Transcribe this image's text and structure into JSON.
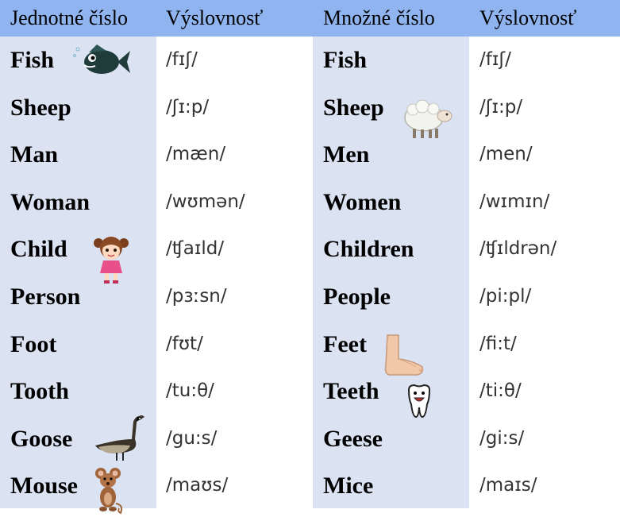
{
  "headers": {
    "singular": "Jednotné číslo",
    "pronunciation_1": "Výslovnosť",
    "plural": "Množné číslo",
    "pronunciation_2": "Výslovnosť"
  },
  "colors": {
    "header_bg": "#8fb4f0",
    "word_col_bg": "#dbe2f2"
  },
  "rows": [
    {
      "singular": "Fish",
      "singular_ipa": "/fɪʃ/",
      "plural": "Fish",
      "plural_ipa": "/fɪʃ/",
      "icon_left": "fish-icon",
      "icon_right": ""
    },
    {
      "singular": "Sheep",
      "singular_ipa": "/ʃɪ:p/",
      "plural": "Sheep",
      "plural_ipa": "/ʃɪ:p/",
      "icon_left": "",
      "icon_right": "sheep-icon"
    },
    {
      "singular": "Man",
      "singular_ipa": "/mæn/",
      "plural": "Men",
      "plural_ipa": "/men/",
      "icon_left": "",
      "icon_right": ""
    },
    {
      "singular": "Woman",
      "singular_ipa": "/wʊmən/",
      "plural": "Women",
      "plural_ipa": "/wɪmɪn/",
      "icon_left": "",
      "icon_right": ""
    },
    {
      "singular": "Child",
      "singular_ipa": "/ʧaɪld/",
      "plural": "Children",
      "plural_ipa": "/ʧɪldrən/",
      "icon_left": "girl-icon",
      "icon_right": ""
    },
    {
      "singular": "Person",
      "singular_ipa": "/pɜːsn/",
      "plural": "People",
      "plural_ipa": "/pi:pl/",
      "icon_left": "",
      "icon_right": ""
    },
    {
      "singular": "Foot",
      "singular_ipa": "/fʊt/",
      "plural": "Feet",
      "plural_ipa": "/fi:t/",
      "icon_left": "",
      "icon_right": "foot-icon"
    },
    {
      "singular": "Tooth",
      "singular_ipa": "/tu:θ/",
      "plural": "Teeth",
      "plural_ipa": "/ti:θ/",
      "icon_left": "",
      "icon_right": "tooth-icon"
    },
    {
      "singular": "Goose",
      "singular_ipa": "/gu:s/",
      "plural": "Geese",
      "plural_ipa": "/gi:s/",
      "icon_left": "goose-icon",
      "icon_right": ""
    },
    {
      "singular": "Mouse",
      "singular_ipa": "/maʊs/",
      "plural": "Mice",
      "plural_ipa": "/maɪs/",
      "icon_left": "mouse-icon",
      "icon_right": ""
    }
  ]
}
